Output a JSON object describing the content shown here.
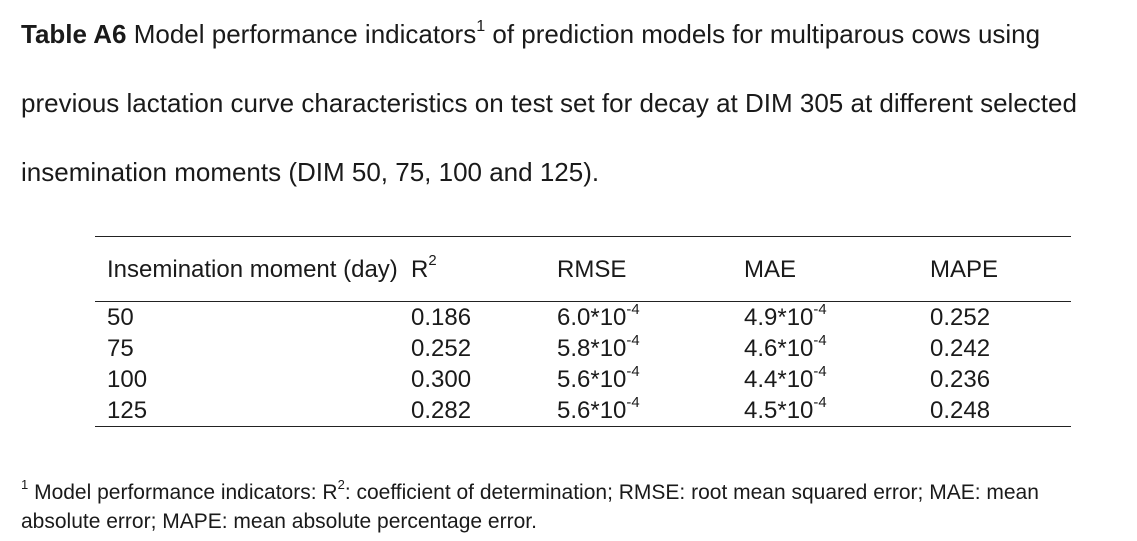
{
  "caption": {
    "label": "Table A6",
    "text_before_sup": " Model performance indicators",
    "sup": "1",
    "text_after_sup": " of prediction models for multiparous cows using previous lactation curve characteristics on test set for decay at DIM 305 at different selected insemination moments (DIM 50, 75, 100 and 125)."
  },
  "table": {
    "headers": {
      "moment": "Insemination moment (day)",
      "r2_base": "R",
      "r2_sup": "2",
      "rmse": "RMSE",
      "mae": "MAE",
      "mape": "MAPE"
    },
    "rows": [
      {
        "moment": "50",
        "r2": "0.186",
        "rmse_base": "6.0*10",
        "rmse_exp": "-4",
        "mae_base": "4.9*10",
        "mae_exp": "-4",
        "mape": "0.252"
      },
      {
        "moment": "75",
        "r2": "0.252",
        "rmse_base": "5.8*10",
        "rmse_exp": "-4",
        "mae_base": "4.6*10",
        "mae_exp": "-4",
        "mape": "0.242"
      },
      {
        "moment": "100",
        "r2": "0.300",
        "rmse_base": "5.6*10",
        "rmse_exp": "-4",
        "mae_base": "4.4*10",
        "mae_exp": "-4",
        "mape": "0.236"
      },
      {
        "moment": "125",
        "r2": "0.282",
        "rmse_base": "5.6*10",
        "rmse_exp": "-4",
        "mae_base": "4.5*10",
        "mae_exp": "-4",
        "mape": "0.248"
      }
    ]
  },
  "footnote": {
    "marker": "1",
    "text_a": " Model performance indicators: R",
    "sup": "2",
    "text_b": ": coefficient of determination; RMSE: root mean squared error; MAE: mean absolute error; MAPE: mean absolute percentage error."
  }
}
